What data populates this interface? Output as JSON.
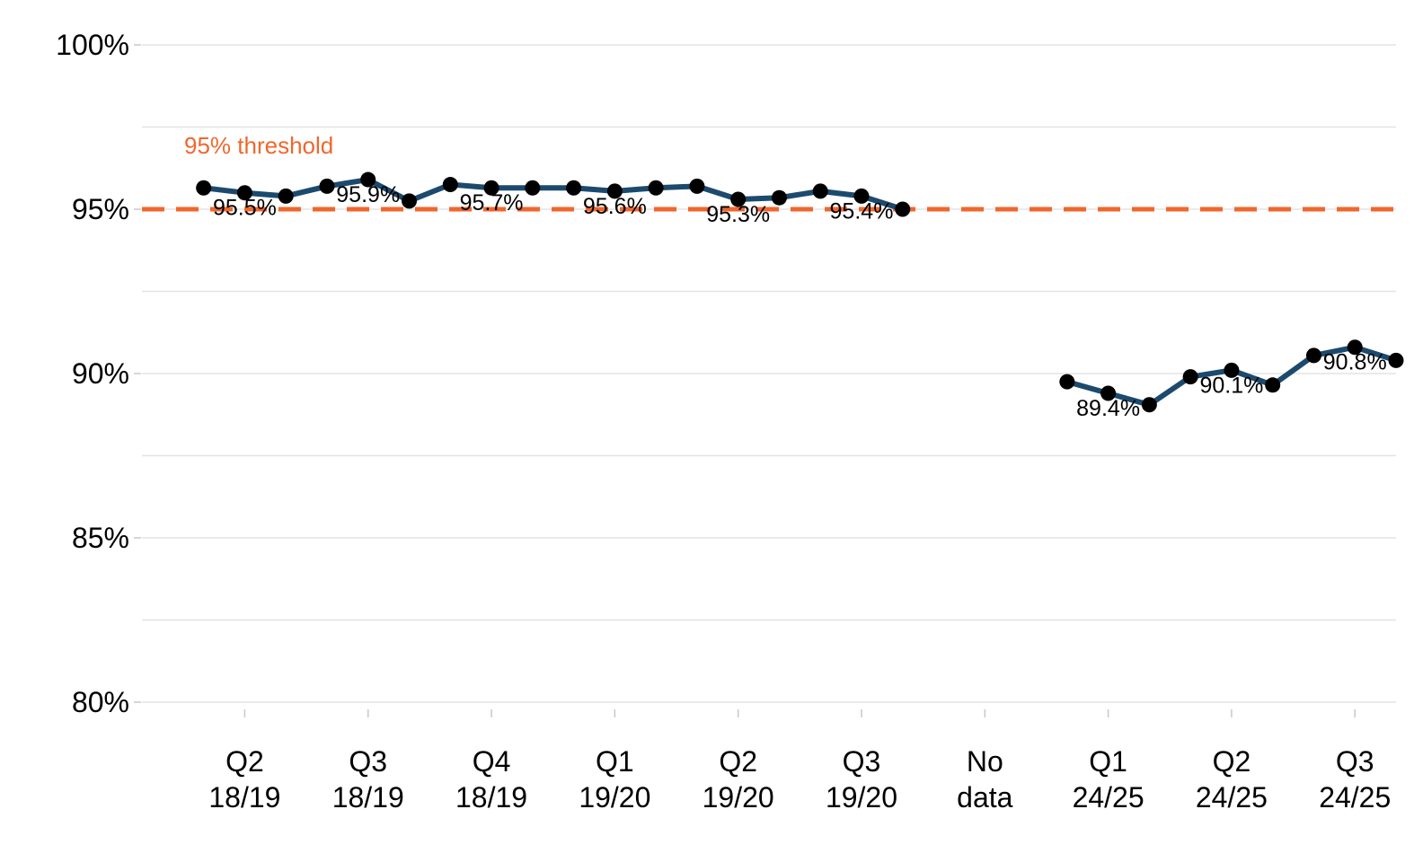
{
  "chart_data": {
    "type": "line",
    "title": "",
    "xlabel": "",
    "ylabel": "",
    "ylim": [
      80,
      100
    ],
    "y_ticks": [
      {
        "value": 100,
        "label": "100%"
      },
      {
        "value": 95,
        "label": "95%"
      },
      {
        "value": 90,
        "label": "90%"
      },
      {
        "value": 85,
        "label": "85%"
      },
      {
        "value": 80,
        "label": "80%"
      }
    ],
    "x_ticks": [
      {
        "line1": "Q2",
        "line2": "18/19",
        "position": 2
      },
      {
        "line1": "Q3",
        "line2": "18/19",
        "position": 5
      },
      {
        "line1": "Q4",
        "line2": "18/19",
        "position": 8
      },
      {
        "line1": "Q1",
        "line2": "19/20",
        "position": 11
      },
      {
        "line1": "Q2",
        "line2": "19/20",
        "position": 14
      },
      {
        "line1": "Q3",
        "line2": "19/20",
        "position": 17
      },
      {
        "line1": "No",
        "line2": "data",
        "position": 20
      },
      {
        "line1": "Q1",
        "line2": "24/25",
        "position": 23
      },
      {
        "line1": "Q2",
        "line2": "24/25",
        "position": 26
      },
      {
        "line1": "Q3",
        "line2": "24/25",
        "position": 29
      }
    ],
    "x_range": [
      -0.5,
      30.0
    ],
    "grid": true,
    "legend": "none",
    "series": [
      {
        "x": [
          1,
          2,
          3,
          4,
          5,
          6,
          7,
          8,
          9,
          10,
          11,
          12,
          13,
          14,
          15,
          16,
          17,
          18
        ],
        "values": [
          95.65,
          95.5,
          95.4,
          95.7,
          95.9,
          95.25,
          95.75,
          95.65,
          95.65,
          95.65,
          95.55,
          95.65,
          95.7,
          95.3,
          95.35,
          95.55,
          95.4,
          95.0
        ]
      },
      {
        "x": [
          22,
          23,
          24,
          25,
          26,
          27,
          28,
          29,
          30
        ],
        "values": [
          89.75,
          89.4,
          89.05,
          89.9,
          90.1,
          89.65,
          90.55,
          90.8,
          90.4
        ]
      }
    ],
    "data_labels": [
      {
        "x": 2,
        "y": 95.5,
        "text": "95.5%"
      },
      {
        "x": 5,
        "y": 95.9,
        "text": "95.9%"
      },
      {
        "x": 8,
        "y": 95.65,
        "text": "95.7%"
      },
      {
        "x": 11,
        "y": 95.55,
        "text": "95.6%"
      },
      {
        "x": 14,
        "y": 95.3,
        "text": "95.3%"
      },
      {
        "x": 17,
        "y": 95.4,
        "text": "95.4%"
      },
      {
        "x": 23,
        "y": 89.4,
        "text": "89.4%"
      },
      {
        "x": 26,
        "y": 90.1,
        "text": "90.1%"
      },
      {
        "x": 29,
        "y": 90.8,
        "text": "90.8%"
      }
    ],
    "threshold": {
      "value": 95,
      "label": "95% threshold"
    },
    "colors": {
      "line": "#1c4a6e",
      "point": "#000000",
      "threshold": "#f0672d",
      "grid": "#e3e3e3",
      "text": "#000000"
    }
  }
}
